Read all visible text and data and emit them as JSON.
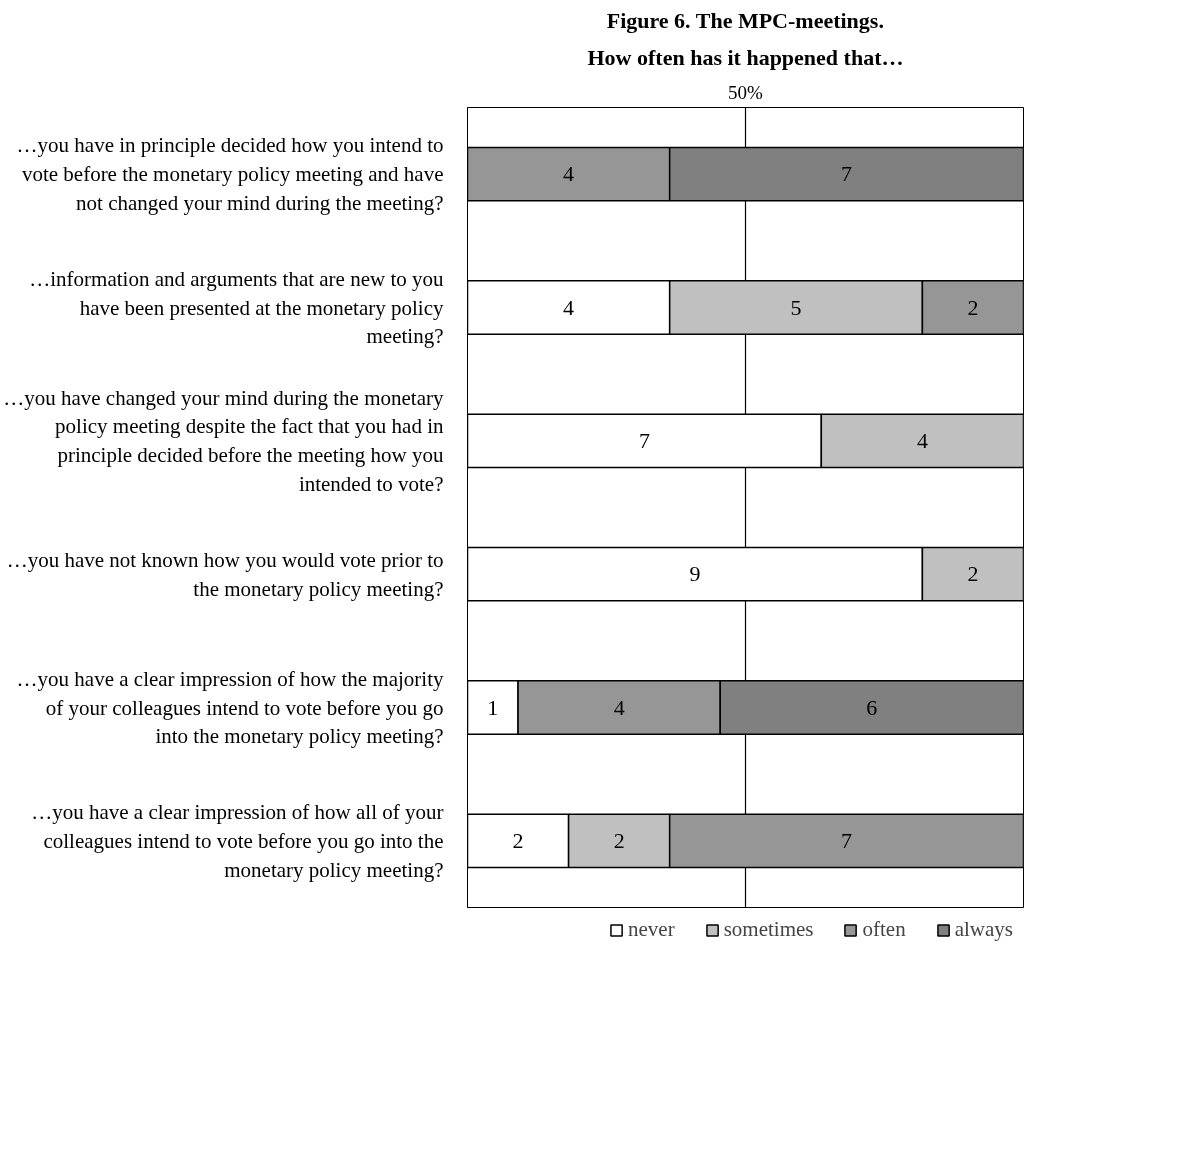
{
  "chart_data": {
    "type": "bar",
    "orientation": "horizontal",
    "stacked": true,
    "title": "Figure 6. The MPC-meetings.",
    "subtitle": "How often has it happened that…",
    "categories": [
      "…you have in principle decided how you intend to vote before the monetary policy meeting and have not changed your mind during the meeting?",
      "…information and arguments that are new to you have been presented at the monetary policy meeting?",
      "…you have changed your mind during the monetary policy meeting despite the fact that you had in principle decided before the meeting how you intended to vote?",
      "…you have not known how you would vote prior to the monetary policy meeting?",
      "…you have a clear impression of how the majority of your colleagues intend to vote before you go into the monetary policy meeting?",
      "…you have a clear impression of how all of your colleagues intend to vote before you go into the monetary policy meeting?"
    ],
    "series": [
      {
        "name": "never",
        "color": "#ffffff",
        "values": [
          null,
          4,
          7,
          9,
          1,
          2
        ]
      },
      {
        "name": "sometimes",
        "color": "#c0c0c0",
        "values": [
          null,
          5,
          4,
          2,
          null,
          2
        ]
      },
      {
        "name": "often",
        "color": "#969696",
        "values": [
          4,
          2,
          null,
          null,
          4,
          7
        ]
      },
      {
        "name": "always",
        "color": "#808080",
        "values": [
          7,
          null,
          null,
          null,
          6,
          null
        ]
      }
    ],
    "xlim": [
      0,
      11
    ],
    "ref_lines": [
      {
        "axis": "x",
        "value": 5.5,
        "color": "#000000"
      }
    ],
    "annotations": [
      "50%"
    ],
    "legend": "bottom right",
    "data_labels": true
  }
}
